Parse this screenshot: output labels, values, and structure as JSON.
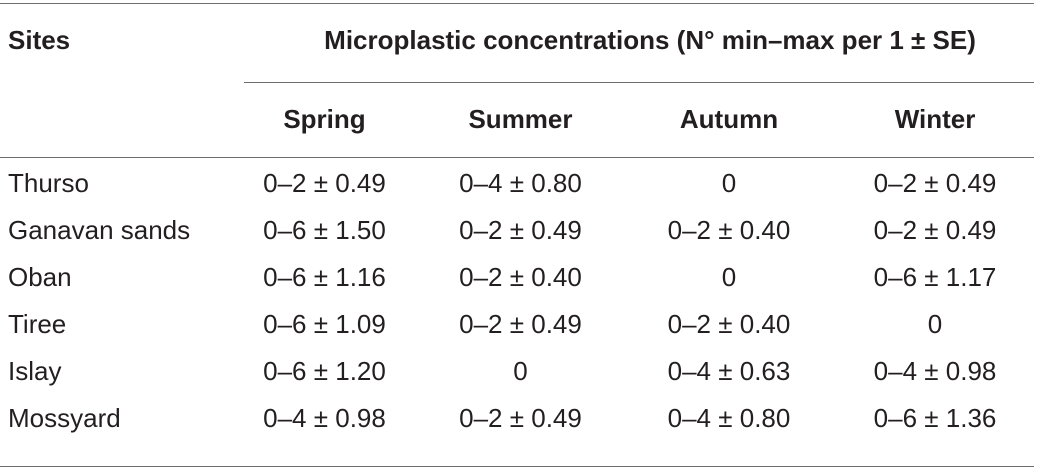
{
  "table": {
    "header": {
      "sites_label": "Sites",
      "group_label": "Microplastic concentrations (N° min–max per 1 ± SE)",
      "seasons": [
        "Spring",
        "Summer",
        "Autumn",
        "Winter"
      ]
    },
    "rows": [
      {
        "site": "Thurso",
        "values": [
          "0–2 ± 0.49",
          "0–4 ± 0.80",
          "0",
          "0–2 ± 0.49"
        ]
      },
      {
        "site": "Ganavan sands",
        "values": [
          "0–6 ± 1.50",
          "0–2 ± 0.49",
          "0–2 ± 0.40",
          "0–2 ± 0.49"
        ]
      },
      {
        "site": "Oban",
        "values": [
          "0–6 ± 1.16",
          "0–2 ± 0.40",
          "0",
          "0–6 ± 1.17"
        ]
      },
      {
        "site": "Tiree",
        "values": [
          "0–6 ± 1.09",
          "0–2 ± 0.49",
          "0–2 ± 0.40",
          "0"
        ]
      },
      {
        "site": "Islay",
        "values": [
          "0–6 ± 1.20",
          "0",
          "0–4 ± 0.63",
          "0–4 ± 0.98"
        ]
      },
      {
        "site": "Mossyard",
        "values": [
          "0–4 ± 0.98",
          "0–2 ± 0.49",
          "0–4 ± 0.80",
          "0–6 ± 1.36"
        ]
      }
    ]
  }
}
